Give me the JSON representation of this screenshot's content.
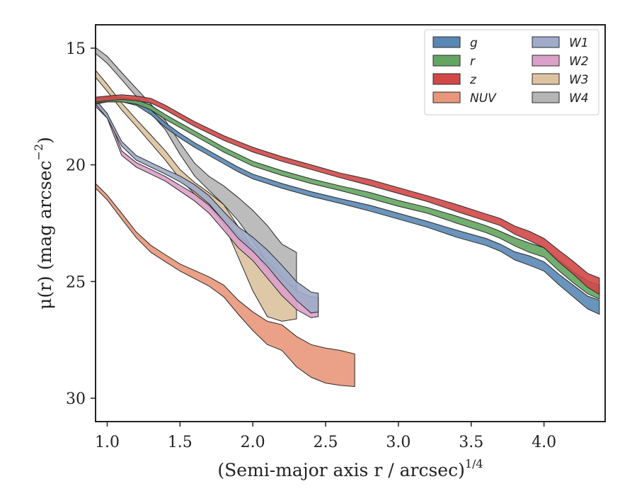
{
  "chart_data": {
    "type": "area",
    "title": "",
    "xlabel": "(Semi-major axis r / arcsec)",
    "xlabel_var": "r",
    "xlabel_sup": "1/4",
    "ylabel": "μ(r) (mag arcsec",
    "ylabel_sup": "−2",
    "ylabel_end": ")",
    "xlim": [
      0.92,
      4.42
    ],
    "ylim": [
      31.0,
      14.0
    ],
    "y_inverted": true,
    "x_ticks": [
      {
        "value": 1.0,
        "label": "1.0"
      },
      {
        "value": 1.5,
        "label": "1.5"
      },
      {
        "value": 2.0,
        "label": "2.0"
      },
      {
        "value": 2.5,
        "label": "2.5"
      },
      {
        "value": 3.0,
        "label": "3.0"
      },
      {
        "value": 3.5,
        "label": "3.5"
      },
      {
        "value": 4.0,
        "label": "4.0"
      }
    ],
    "y_ticks": [
      {
        "value": 15,
        "label": "15"
      },
      {
        "value": 20,
        "label": "20"
      },
      {
        "value": 25,
        "label": "25"
      },
      {
        "value": 30,
        "label": "30"
      }
    ],
    "grid": false,
    "legend": {
      "placement": "top-right",
      "columns": 2
    },
    "series": [
      {
        "name": "g",
        "color": "#5a88b4",
        "x": [
          0.92,
          1.0,
          1.1,
          1.2,
          1.3,
          1.4,
          1.5,
          1.6,
          1.7,
          1.8,
          1.9,
          2.0,
          2.2,
          2.4,
          2.6,
          2.8,
          3.0,
          3.2,
          3.4,
          3.6,
          3.7,
          3.8,
          3.9,
          4.0,
          4.1,
          4.2,
          4.3,
          4.38
        ],
        "y": [
          17.3,
          17.2,
          17.2,
          17.35,
          17.75,
          18.3,
          18.75,
          19.15,
          19.5,
          19.85,
          20.2,
          20.5,
          20.9,
          21.25,
          21.55,
          21.85,
          22.2,
          22.55,
          22.95,
          23.3,
          23.55,
          23.9,
          24.1,
          24.35,
          24.9,
          25.4,
          25.9,
          26.1
        ],
        "width": [
          0.2,
          0.2,
          0.2,
          0.2,
          0.2,
          0.2,
          0.2,
          0.2,
          0.2,
          0.2,
          0.2,
          0.2,
          0.2,
          0.2,
          0.2,
          0.25,
          0.25,
          0.25,
          0.3,
          0.3,
          0.3,
          0.35,
          0.4,
          0.4,
          0.45,
          0.5,
          0.55,
          0.6
        ]
      },
      {
        "name": "r",
        "color": "#64a562",
        "x": [
          0.92,
          1.0,
          1.1,
          1.2,
          1.3,
          1.4,
          1.5,
          1.6,
          1.7,
          1.8,
          1.9,
          2.0,
          2.2,
          2.4,
          2.6,
          2.8,
          3.0,
          3.2,
          3.4,
          3.6,
          3.7,
          3.8,
          3.9,
          4.0,
          4.1,
          4.2,
          4.3,
          4.38
        ],
        "y": [
          17.25,
          17.2,
          17.2,
          17.3,
          17.55,
          17.95,
          18.3,
          18.65,
          19.0,
          19.35,
          19.65,
          19.95,
          20.35,
          20.7,
          21.0,
          21.3,
          21.65,
          21.95,
          22.35,
          22.75,
          23.0,
          23.3,
          23.55,
          23.75,
          24.3,
          24.8,
          25.25,
          25.45
        ],
        "width": [
          0.2,
          0.2,
          0.2,
          0.2,
          0.2,
          0.2,
          0.2,
          0.2,
          0.2,
          0.2,
          0.2,
          0.2,
          0.2,
          0.2,
          0.2,
          0.25,
          0.25,
          0.25,
          0.3,
          0.3,
          0.3,
          0.35,
          0.4,
          0.4,
          0.45,
          0.5,
          0.55,
          0.6
        ]
      },
      {
        "name": "z",
        "color": "#d24848",
        "x": [
          0.92,
          1.0,
          1.1,
          1.2,
          1.3,
          1.4,
          1.5,
          1.6,
          1.7,
          1.8,
          1.9,
          2.0,
          2.2,
          2.4,
          2.6,
          2.8,
          3.0,
          3.2,
          3.4,
          3.6,
          3.7,
          3.8,
          3.9,
          4.0,
          4.1,
          4.2,
          4.3,
          4.38
        ],
        "y": [
          17.2,
          17.15,
          17.1,
          17.15,
          17.25,
          17.55,
          17.9,
          18.25,
          18.55,
          18.85,
          19.1,
          19.35,
          19.75,
          20.1,
          20.45,
          20.75,
          21.1,
          21.45,
          21.85,
          22.25,
          22.45,
          22.8,
          23.05,
          23.35,
          23.9,
          24.4,
          24.95,
          25.2
        ],
        "width": [
          0.2,
          0.2,
          0.2,
          0.2,
          0.2,
          0.2,
          0.2,
          0.2,
          0.2,
          0.2,
          0.2,
          0.2,
          0.2,
          0.2,
          0.2,
          0.25,
          0.25,
          0.25,
          0.3,
          0.3,
          0.3,
          0.35,
          0.4,
          0.4,
          0.5,
          0.55,
          0.6,
          0.7
        ]
      },
      {
        "name": "NUV",
        "color": "#e8977a",
        "x": [
          0.92,
          1.0,
          1.1,
          1.2,
          1.3,
          1.4,
          1.5,
          1.6,
          1.7,
          1.8,
          1.9,
          2.0,
          2.1,
          2.2,
          2.3,
          2.4,
          2.5,
          2.6,
          2.7
        ],
        "y": [
          20.9,
          21.4,
          22.2,
          23.0,
          23.6,
          24.0,
          24.4,
          24.7,
          25.0,
          25.4,
          26.1,
          26.7,
          27.2,
          27.4,
          28.0,
          28.4,
          28.6,
          28.7,
          28.8
        ],
        "width": [
          0.2,
          0.2,
          0.25,
          0.25,
          0.3,
          0.3,
          0.3,
          0.35,
          0.4,
          0.5,
          0.6,
          0.8,
          1.0,
          1.1,
          1.3,
          1.4,
          1.5,
          1.5,
          1.4
        ]
      },
      {
        "name": "W1",
        "color": "#9eabc9",
        "x": [
          0.92,
          1.0,
          1.05,
          1.1,
          1.2,
          1.3,
          1.4,
          1.5,
          1.6,
          1.7,
          1.8,
          1.9,
          2.0,
          2.1,
          2.2,
          2.3,
          2.4,
          2.45
        ],
        "y": [
          17.3,
          17.9,
          18.5,
          19.1,
          19.7,
          20.0,
          20.3,
          20.6,
          21.0,
          21.5,
          22.2,
          22.9,
          23.4,
          24.0,
          24.7,
          25.4,
          25.9,
          25.9
        ],
        "width": [
          0.2,
          0.2,
          0.2,
          0.2,
          0.2,
          0.2,
          0.2,
          0.25,
          0.3,
          0.35,
          0.4,
          0.5,
          0.6,
          0.7,
          0.8,
          0.8,
          0.9,
          0.8
        ]
      },
      {
        "name": "W2",
        "color": "#dba1c8",
        "x": [
          0.92,
          1.0,
          1.05,
          1.1,
          1.2,
          1.3,
          1.4,
          1.5,
          1.6,
          1.7,
          1.8,
          1.9,
          2.0,
          2.1,
          2.2,
          2.3,
          2.4,
          2.45
        ],
        "y": [
          17.4,
          17.9,
          18.7,
          19.5,
          20.0,
          20.3,
          20.6,
          21.0,
          21.4,
          21.9,
          22.6,
          23.3,
          23.8,
          24.5,
          25.2,
          25.8,
          26.1,
          26.1
        ],
        "width": [
          0.2,
          0.2,
          0.2,
          0.2,
          0.2,
          0.2,
          0.2,
          0.25,
          0.3,
          0.35,
          0.4,
          0.5,
          0.6,
          0.7,
          0.8,
          0.8,
          0.9,
          0.8
        ]
      },
      {
        "name": "W3",
        "color": "#dcc29f",
        "x": [
          0.92,
          1.0,
          1.1,
          1.2,
          1.3,
          1.4,
          1.5,
          1.6,
          1.7,
          1.8,
          1.9,
          2.0,
          2.1,
          2.2,
          2.3
        ],
        "y": [
          16.1,
          16.7,
          17.5,
          18.2,
          18.9,
          19.6,
          20.4,
          21.0,
          21.5,
          22.1,
          23.3,
          24.5,
          25.5,
          25.9,
          25.9
        ],
        "width": [
          0.3,
          0.3,
          0.3,
          0.3,
          0.35,
          0.4,
          0.4,
          0.5,
          0.6,
          0.8,
          1.3,
          1.8,
          2.0,
          1.6,
          1.4
        ]
      },
      {
        "name": "W4",
        "color": "#b5b5b5",
        "x": [
          0.92,
          1.0,
          1.1,
          1.2,
          1.3,
          1.4,
          1.5,
          1.6,
          1.7,
          1.8,
          1.9,
          2.0,
          2.1,
          2.2,
          2.3
        ],
        "y": [
          15.1,
          15.5,
          16.2,
          16.9,
          17.6,
          18.3,
          19.3,
          20.2,
          20.8,
          21.3,
          21.9,
          22.6,
          23.4,
          24.3,
          24.6
        ],
        "width": [
          0.25,
          0.3,
          0.3,
          0.35,
          0.4,
          0.4,
          0.5,
          0.55,
          0.6,
          0.8,
          1.0,
          1.3,
          1.6,
          1.8,
          1.7
        ]
      }
    ]
  }
}
